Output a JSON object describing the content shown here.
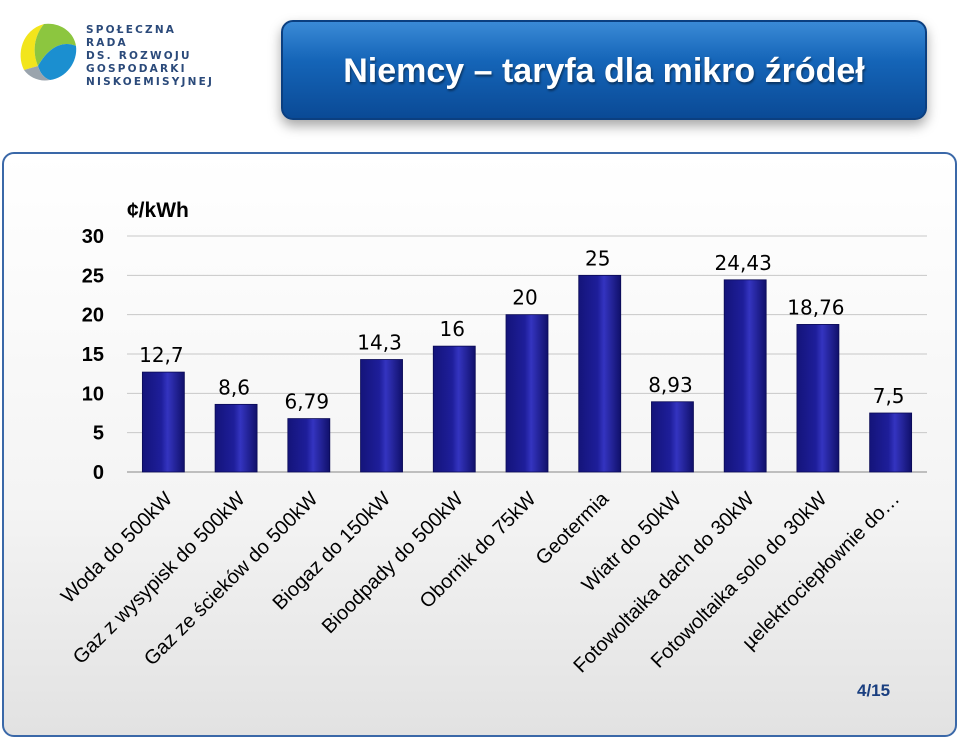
{
  "header": {
    "logo_lines": [
      "SPOŁECZNA RADA",
      "DS. ROZWOJU",
      "GOSPODARKI",
      "NISKOEMISYJNEJ"
    ],
    "title": "Niemcy – taryfa dla mikro źródeł"
  },
  "page_number": "4/15",
  "colors": {
    "bar": "#1e1e9a",
    "title_bg": "#1565b8",
    "panel_border": "#3a68a8"
  },
  "chart_data": {
    "type": "bar",
    "title": "",
    "ylabel": "¢/kWh",
    "xlabel": "",
    "ylim": [
      0,
      30
    ],
    "yticks": [
      "0",
      "5",
      "10",
      "15",
      "20",
      "25",
      "30"
    ],
    "grid": true,
    "categories": [
      "Woda do 500kW",
      "Gaz z wysypisk do 500kW",
      "Gaz ze ścieków do 500kW",
      "Biogaz do 150kW",
      "Bioodpady do 500kW",
      "Obornik do 75kW",
      "Geotermia",
      "Wiatr do 50kW",
      "Fotowoltaika dach do 30kW",
      "Fotowoltaika solo do 30kW",
      "µelektrociepłownie do…"
    ],
    "values": [
      12.7,
      8.6,
      6.79,
      14.3,
      16,
      20,
      25,
      8.93,
      24.43,
      18.76,
      7.5
    ],
    "value_labels": [
      "12,7",
      "8,6",
      "6,79",
      "14,3",
      "16",
      "20",
      "25",
      "8,93",
      "24,43",
      "18,76",
      "7,5"
    ]
  }
}
